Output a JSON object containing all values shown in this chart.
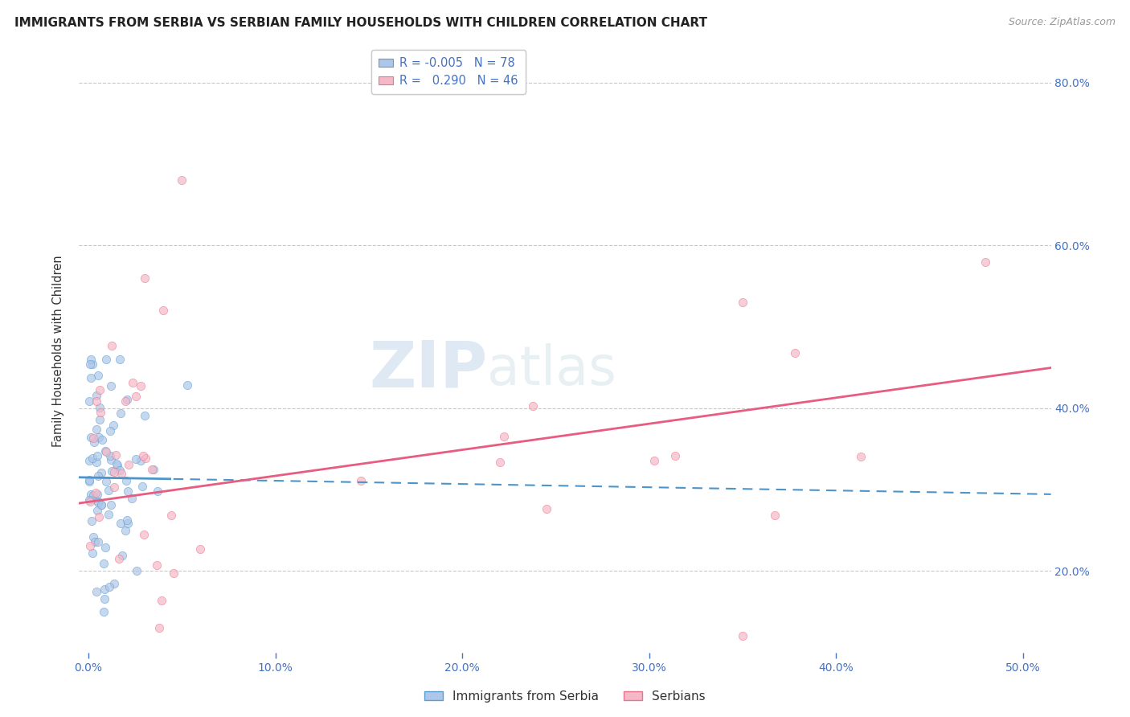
{
  "title": "IMMIGRANTS FROM SERBIA VS SERBIAN FAMILY HOUSEHOLDS WITH CHILDREN CORRELATION CHART",
  "source": "Source: ZipAtlas.com",
  "xlabel_vals": [
    0.0,
    10.0,
    20.0,
    30.0,
    40.0,
    50.0
  ],
  "ylabel_vals": [
    20.0,
    40.0,
    60.0,
    80.0
  ],
  "xlim": [
    -0.5,
    51.5
  ],
  "ylim": [
    10.0,
    84.0
  ],
  "ylabel": "Family Households with Children",
  "blue_fill": "#aec6e8",
  "blue_edge": "#5a9fd4",
  "pink_fill": "#f5b8c8",
  "pink_edge": "#e8758a",
  "blue_line_color": "#4d94c8",
  "pink_line_color": "#e85c80",
  "R_blue": -0.005,
  "N_blue": 78,
  "R_pink": 0.29,
  "N_pink": 46,
  "legend_label_blue": "Immigrants from Serbia",
  "legend_label_pink": "Serbians",
  "watermark_zip": "ZIP",
  "watermark_atlas": "atlas",
  "grid_color": "#bbbbbb",
  "bg_color": "#ffffff",
  "title_fontsize": 11,
  "axis_label_color": "#4472c4",
  "tick_color": "#4472c4",
  "blue_line_intercept": 31.5,
  "blue_line_slope": -0.04,
  "pink_line_intercept": 28.5,
  "pink_line_slope": 0.32,
  "blue_solid_x_end": 4.5,
  "dot_size": 55,
  "dot_alpha": 0.7
}
